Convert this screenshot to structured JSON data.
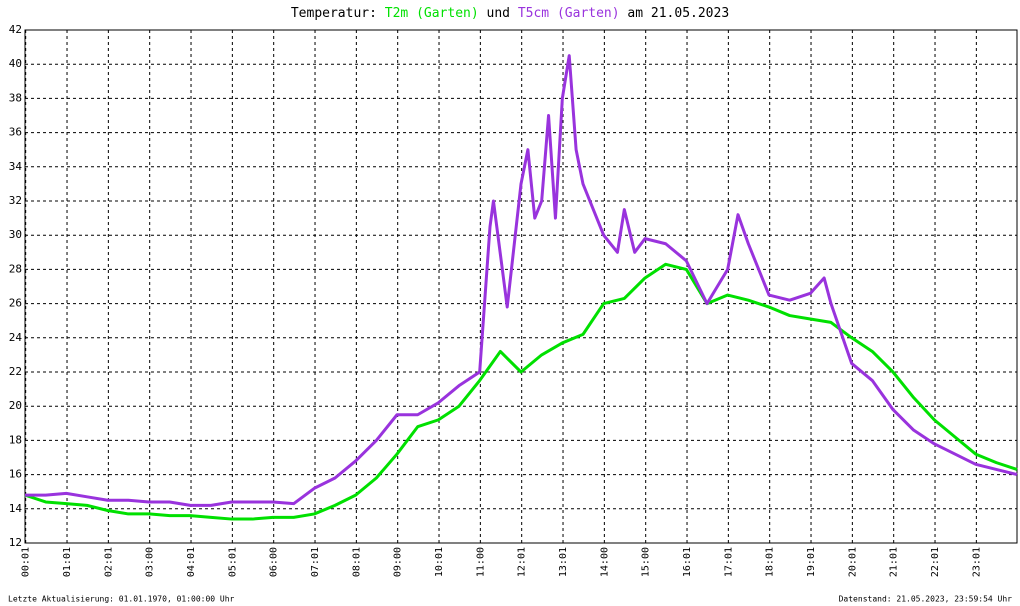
{
  "chart_data": {
    "type": "line",
    "title_prefix": "Temperatur:",
    "title_connector": "und",
    "title_date": "am 21.05.2023",
    "footer_left": "Letzte Aktualisierung: 01.01.1970, 01:00:00 Uhr",
    "footer_right": "Datenstand: 21.05.2023, 23:59:54 Uhr",
    "xlim": [
      0,
      1440
    ],
    "xticks": [
      {
        "value": 1,
        "label": "00:01"
      },
      {
        "value": 61,
        "label": "01:01"
      },
      {
        "value": 121,
        "label": "02:01"
      },
      {
        "value": 181,
        "label": "03:00"
      },
      {
        "value": 241,
        "label": "04:01"
      },
      {
        "value": 301,
        "label": "05:01"
      },
      {
        "value": 361,
        "label": "06:00"
      },
      {
        "value": 421,
        "label": "07:01"
      },
      {
        "value": 481,
        "label": "08:01"
      },
      {
        "value": 541,
        "label": "09:00"
      },
      {
        "value": 601,
        "label": "10:01"
      },
      {
        "value": 661,
        "label": "11:00"
      },
      {
        "value": 721,
        "label": "12:01"
      },
      {
        "value": 781,
        "label": "13:01"
      },
      {
        "value": 841,
        "label": "14:00"
      },
      {
        "value": 901,
        "label": "15:00"
      },
      {
        "value": 961,
        "label": "16:01"
      },
      {
        "value": 1021,
        "label": "17:01"
      },
      {
        "value": 1081,
        "label": "18:01"
      },
      {
        "value": 1141,
        "label": "19:01"
      },
      {
        "value": 1201,
        "label": "20:01"
      },
      {
        "value": 1261,
        "label": "21:01"
      },
      {
        "value": 1321,
        "label": "22:01"
      },
      {
        "value": 1381,
        "label": "23:01"
      }
    ],
    "ylim": [
      12,
      42
    ],
    "yticks": [
      12,
      14,
      16,
      18,
      20,
      22,
      24,
      26,
      28,
      30,
      32,
      34,
      36,
      38,
      40,
      42
    ],
    "grid": true,
    "series": [
      {
        "name": "T2m (Garten)",
        "color": "#00e000",
        "x": [
          0,
          30,
          60,
          90,
          120,
          150,
          180,
          210,
          240,
          270,
          300,
          330,
          360,
          390,
          420,
          450,
          480,
          510,
          540,
          570,
          600,
          630,
          660,
          690,
          720,
          750,
          780,
          810,
          840,
          870,
          900,
          930,
          960,
          990,
          1020,
          1050,
          1080,
          1110,
          1140,
          1170,
          1200,
          1230,
          1260,
          1290,
          1320,
          1350,
          1380,
          1410,
          1440
        ],
        "values": [
          14.8,
          14.4,
          14.3,
          14.2,
          13.9,
          13.7,
          13.7,
          13.6,
          13.6,
          13.5,
          13.4,
          13.4,
          13.5,
          13.5,
          13.7,
          14.2,
          14.8,
          15.8,
          17.2,
          18.8,
          19.2,
          20.0,
          21.5,
          23.2,
          22.0,
          23.0,
          23.7,
          24.2,
          26.0,
          26.3,
          27.5,
          28.3,
          28.0,
          26.0,
          26.5,
          26.2,
          25.8,
          25.3,
          25.1,
          24.9,
          24.0,
          23.2,
          22.0,
          20.5,
          19.2,
          18.2,
          17.2,
          16.7,
          16.3
        ]
      },
      {
        "name": "T5cm (Garten)",
        "color": "#9933dd",
        "x": [
          0,
          30,
          60,
          90,
          120,
          150,
          180,
          210,
          240,
          270,
          300,
          330,
          360,
          390,
          420,
          450,
          480,
          510,
          540,
          570,
          600,
          630,
          660,
          675,
          680,
          700,
          720,
          730,
          740,
          750,
          760,
          770,
          780,
          790,
          800,
          810,
          840,
          860,
          870,
          885,
          900,
          930,
          960,
          990,
          1020,
          1035,
          1050,
          1080,
          1110,
          1140,
          1160,
          1170,
          1200,
          1230,
          1260,
          1290,
          1320,
          1350,
          1380,
          1410,
          1440
        ],
        "values": [
          14.8,
          14.8,
          14.9,
          14.7,
          14.5,
          14.5,
          14.4,
          14.4,
          14.2,
          14.2,
          14.4,
          14.4,
          14.4,
          14.3,
          15.2,
          15.8,
          16.8,
          18.0,
          19.5,
          19.5,
          20.2,
          21.2,
          22.0,
          30.5,
          32.0,
          25.8,
          33.0,
          35.0,
          31.0,
          32.0,
          37.0,
          31.0,
          38.0,
          40.5,
          35.0,
          33.0,
          30.0,
          29.0,
          31.5,
          29.0,
          29.8,
          29.5,
          28.5,
          26.0,
          28.0,
          31.2,
          29.5,
          26.5,
          26.2,
          26.6,
          27.5,
          26.0,
          22.5,
          21.5,
          19.8,
          18.6,
          17.8,
          17.2,
          16.6,
          16.3,
          16.0
        ]
      }
    ]
  }
}
